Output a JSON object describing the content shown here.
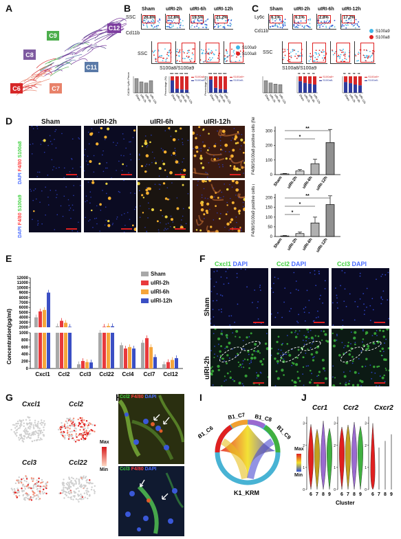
{
  "panels": {
    "A": "A",
    "B": "B",
    "C": "C",
    "D": "D",
    "E": "E",
    "F": "F",
    "G": "G",
    "H": "H",
    "I": "I",
    "J": "J"
  },
  "A": {
    "clusters": [
      {
        "id": "C9",
        "color": "#4cae4c"
      },
      {
        "id": "C12",
        "color": "#7e3fa0"
      },
      {
        "id": "C8",
        "color": "#7e5aa0"
      },
      {
        "id": "C11",
        "color": "#5a7aa8"
      },
      {
        "id": "C6",
        "color": "#d62728"
      },
      {
        "id": "C7",
        "color": "#e8826a"
      }
    ]
  },
  "B": {
    "groups": [
      "Sham",
      "uIRI-2h",
      "uIRI-6h",
      "uIRI-12h"
    ],
    "gate_pct": [
      "26.8%",
      "12.8%",
      "19.5%",
      "21.2%"
    ],
    "ylabel_top": "SSC",
    "xlabel_top": "Cd11b",
    "ylabel_bottom": "SSC",
    "xlabel_bottom": "S100a8/S100a9",
    "legend": [
      "S100a9",
      "S100a8"
    ],
    "bar_ylabel": "Cd11b+Ly6c Percentage(%)",
    "bar_ylabel2": "Percentage (%)",
    "stack_legend_a": [
      "S100a8+",
      "S100a8-"
    ],
    "stack_legend_b": [
      "S100a9+",
      "S100a9-"
    ],
    "sig": "***"
  },
  "C": {
    "groups": [
      "Sham",
      "uIRI-2h",
      "uIRI-6h",
      "uIRI-12h"
    ],
    "gate_pct": [
      "6.1%",
      "6.1%",
      "2.8%",
      "17.2%"
    ],
    "ylabel_top": "Ly6c",
    "xlabel_top": "Cd11b",
    "ylabel_bottom": "SSC",
    "xlabel_bottom": "S100a8/S100a9",
    "legend": [
      "S100a9",
      "S100a8"
    ],
    "stack_legend": [
      "S100a8+",
      "S100a8-",
      "S100a9+",
      "S100a9-"
    ],
    "sig": "**"
  },
  "D": {
    "columns": [
      "Sham",
      "uIRI-2h",
      "uIRI-6h",
      "uIRI-12h"
    ],
    "row1_label": [
      "DAPI",
      "F4/80",
      "S100a8"
    ],
    "row2_label": [
      "DAPI",
      "F4/80",
      "S100a9"
    ],
    "chart1": {
      "ylabel": "F4/80/S100a8 positive cells (field)",
      "yticks": [
        "0",
        "100",
        "200",
        "300"
      ],
      "sig": [
        "*",
        "**"
      ]
    },
    "chart2": {
      "ylabel": "F4/80/S100a9 positive cells (field)",
      "yticks": [
        "0",
        "50",
        "100",
        "150",
        "200"
      ],
      "sig": [
        "*",
        "*",
        "**"
      ]
    }
  },
  "E": {
    "ylabel": "Concentration(pg/ml)",
    "yticks_upper": [
      "12000",
      "11000",
      "10000",
      "9000",
      "8000",
      "7000",
      "6000",
      "5000",
      "4000",
      "3000",
      "2000"
    ],
    "yticks_lower": [
      "1000",
      "800",
      "600",
      "400",
      "200",
      "0"
    ],
    "legend": [
      "Sham",
      "uIRI-2h",
      "uIRI-6h",
      "uIRI-12h"
    ],
    "colors": [
      "#a8a8a8",
      "#e8393c",
      "#f5a53b",
      "#3b4fc4"
    ]
  },
  "F": {
    "headers": [
      {
        "gene": "Cxcl1",
        "dapi": "DAPI"
      },
      {
        "gene": "Ccl2",
        "dapi": "DAPI"
      },
      {
        "gene": "Ccl3",
        "dapi": "DAPI"
      }
    ],
    "rows": [
      "Sham",
      "uIRI-2h"
    ]
  },
  "G": {
    "genes": [
      "Cxcl1",
      "Ccl2",
      "Ccl3",
      "Ccl22"
    ],
    "scale_max": "Max",
    "scale_min": "Min"
  },
  "H": {
    "top": [
      "Ccl2",
      "F4/80",
      "DAPI"
    ],
    "bottom": [
      "Ccl3",
      "F4/80",
      "DAPI"
    ]
  },
  "I": {
    "nodes": [
      "B1_C6",
      "B1_C7",
      "B1_C8",
      "B1_C9"
    ],
    "target": "K1_KRM",
    "scale_max": "Max",
    "scale_min": "Min"
  },
  "J": {
    "genes": [
      "Ccr1",
      "Ccr2",
      "Cxcr2"
    ],
    "clusters": [
      "6",
      "7",
      "8",
      "9"
    ],
    "xlabel": "Cluster",
    "yticks": [
      "0",
      "1",
      "2",
      "3"
    ]
  },
  "chart_data": [
    {
      "type": "bar",
      "title": "",
      "ylabel": "F4/80/S100a8 positive cells (field)",
      "categories": [
        "Sham",
        "uIRI-2h",
        "uIRI-6h",
        "uIRI-12h"
      ],
      "values": [
        5,
        25,
        75,
        220
      ],
      "errors": [
        3,
        10,
        30,
        90
      ],
      "ylim": [
        0,
        330
      ]
    },
    {
      "type": "bar",
      "title": "",
      "ylabel": "F4/80/S100a9 positive cells (field)",
      "categories": [
        "Sham",
        "uIRI-2h",
        "uIRI-6h",
        "uIRI-12h"
      ],
      "values": [
        3,
        15,
        70,
        165
      ],
      "errors": [
        2,
        8,
        30,
        45
      ],
      "ylim": [
        0,
        220
      ]
    },
    {
      "type": "bar",
      "title": "",
      "ylabel": "Concentration(pg/ml)",
      "categories": [
        "Cxcl1",
        "Ccl2",
        "Ccl3",
        "Ccl22",
        "Ccl4",
        "Ccl7",
        "Ccl12"
      ],
      "series": [
        {
          "name": "Sham",
          "values": [
            4000,
            2200,
            120,
            1900,
            650,
            720,
            120
          ]
        },
        {
          "name": "uIRI-2h",
          "values": [
            5200,
            3300,
            210,
            2100,
            560,
            850,
            180
          ]
        },
        {
          "name": "uIRI-6h",
          "values": [
            5500,
            2900,
            180,
            2250,
            600,
            600,
            240
          ]
        },
        {
          "name": "uIRI-12h",
          "values": [
            9000,
            2100,
            170,
            2200,
            560,
            320,
            290
          ]
        }
      ],
      "broken_axis": {
        "lower": [
          0,
          1000
        ],
        "upper": [
          2000,
          12000
        ]
      }
    },
    {
      "type": "bar",
      "title": "",
      "ylabel": "Cd11b+Ly6c Percentage(%)",
      "categories": [
        "Sham",
        "uIRI-2h",
        "uIRI-6h",
        "uIRI-12h"
      ],
      "values": [
        26,
        20,
        18,
        22
      ]
    }
  ]
}
